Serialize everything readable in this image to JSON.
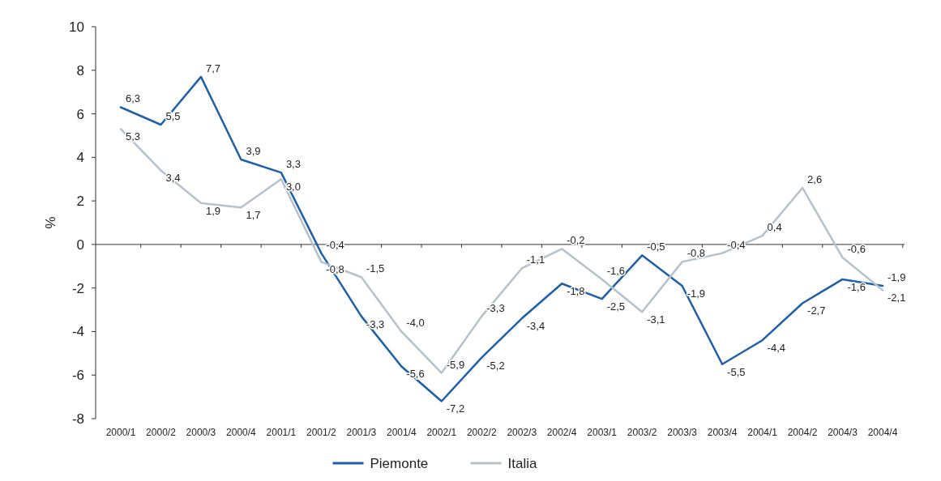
{
  "chart_data": {
    "type": "line",
    "ylabel": "%",
    "categories": [
      "2000/1",
      "2000/2",
      "2000/3",
      "2000/4",
      "2001/1",
      "2001/2",
      "2001/3",
      "2001/4",
      "2002/1",
      "2002/2",
      "2002/3",
      "2002/4",
      "2003/1",
      "2003/2",
      "2003/3",
      "2003/4",
      "2004/1",
      "2004/2",
      "2004/3",
      "2004/4"
    ],
    "series": [
      {
        "name": "Piemonte",
        "color": "#1f5fa8",
        "values": [
          6.3,
          5.5,
          7.7,
          3.9,
          3.3,
          -0.4,
          -3.3,
          -5.6,
          -7.2,
          -5.2,
          -3.4,
          -1.8,
          -2.5,
          -0.5,
          -1.9,
          -5.5,
          -4.4,
          -2.7,
          -1.6,
          -1.9
        ],
        "value_labels": [
          "6,3",
          "5,5",
          "7,7",
          "3,9",
          "3,3",
          "-0,4",
          "-3,3",
          "-5,6",
          "-7,2",
          "-5,2",
          "-3,4",
          "-1,8",
          "-2,5",
          "-0,5",
          "-1,9",
          "-5,5",
          "-4,4",
          "-2,7",
          "-1,6",
          "-1,9"
        ]
      },
      {
        "name": "Italia",
        "color": "#b5c1cc",
        "values": [
          5.3,
          3.4,
          1.9,
          1.7,
          3.0,
          -0.8,
          -1.5,
          -4.0,
          -5.9,
          -3.3,
          -1.1,
          -0.2,
          -1.6,
          -3.1,
          -0.8,
          -0.4,
          0.4,
          2.6,
          -0.6,
          -2.1
        ],
        "value_labels": [
          "5,3",
          "3,4",
          "1,9",
          "1,7",
          "3,0",
          "-0,8",
          "-1,5",
          "-4,0",
          "-5,9",
          "-3,3",
          "-1,1",
          "-0,2",
          "-1,6",
          "-3,1",
          "-0,8",
          "-0,4",
          "0,4",
          "2,6",
          "-0,6",
          "-2,1"
        ]
      }
    ],
    "ylim": [
      -8,
      10
    ],
    "yticks": [
      -8,
      -6,
      -4,
      -2,
      0,
      2,
      4,
      6,
      8,
      10
    ],
    "legend": "bottom",
    "marker": "none",
    "line_style": "solid"
  }
}
